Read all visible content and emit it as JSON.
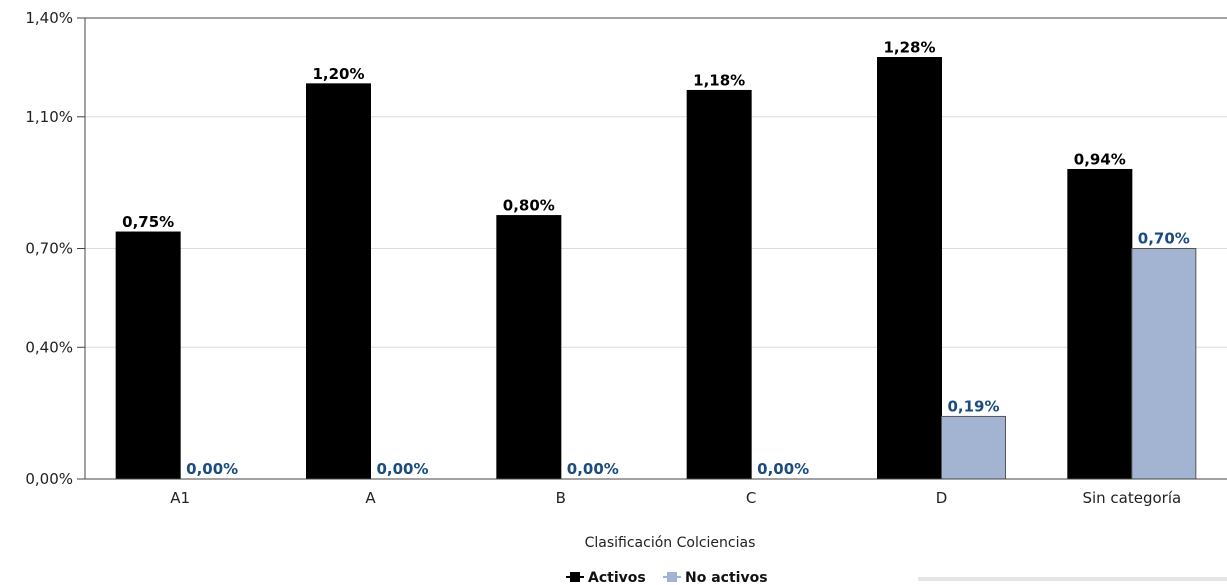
{
  "chart_data": {
    "type": "bar",
    "title": "",
    "xlabel": "Clasificación Colciencias",
    "ylabel": "",
    "categories": [
      "A1",
      "A",
      "B",
      "C",
      "D",
      "Sin categoría"
    ],
    "series": [
      {
        "name": "Activos",
        "values": [
          0.75,
          1.2,
          0.8,
          1.18,
          1.28,
          0.94
        ],
        "labels": [
          "0,75%",
          "1,20%",
          "0,80%",
          "1,18%",
          "1,28%",
          "0,94%"
        ],
        "color": "#000000",
        "label_color": "#000000"
      },
      {
        "name": "No activos",
        "values": [
          0.0,
          0.0,
          0.0,
          0.0,
          0.19,
          0.7
        ],
        "labels": [
          "0,00%",
          "0,00%",
          "0,00%",
          "0,00%",
          "0,19%",
          "0,70%"
        ],
        "color": "#a2b4d2",
        "label_color": "#1a4c80"
      }
    ],
    "ylim": [
      0,
      1.4
    ],
    "yticks": [
      0.0,
      0.4,
      0.7,
      1.1,
      1.4
    ],
    "ytick_labels": [
      "0,00%",
      "0,40%",
      "0,70%",
      "1,10%",
      "1,40%"
    ],
    "grid": true,
    "legend_position": "bottom-center"
  }
}
